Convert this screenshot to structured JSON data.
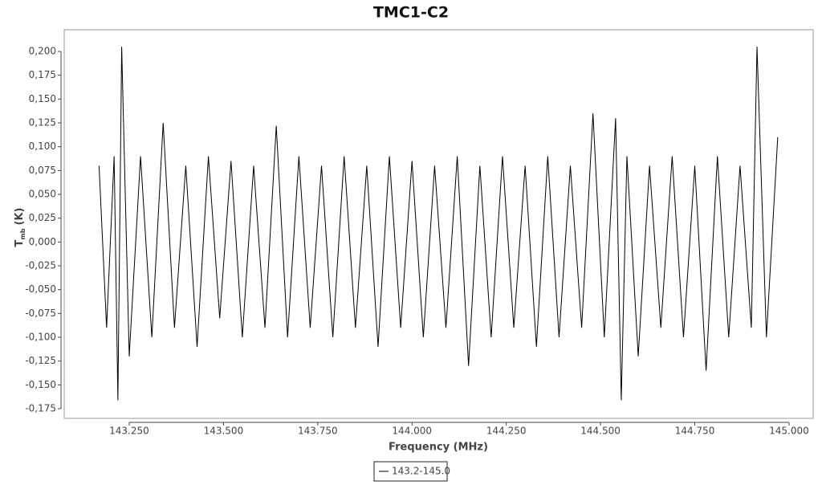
{
  "chart_data": {
    "type": "line",
    "title": "TMC1-C2",
    "x_label": "Frequency (MHz)",
    "y_label": {
      "main": "T",
      "sub": "mb",
      "unit": "(K)"
    },
    "xlim": [
      143.0776,
      145.064
    ],
    "ylim": [
      -0.1851,
      0.2228
    ],
    "xticks": [
      {
        "value": 143.25,
        "label": "143.250"
      },
      {
        "value": 143.5,
        "label": "143.500"
      },
      {
        "value": 143.75,
        "label": "143.750"
      },
      {
        "value": 144.0,
        "label": "144.000"
      },
      {
        "value": 144.25,
        "label": "144.250"
      },
      {
        "value": 144.5,
        "label": "144.500"
      },
      {
        "value": 144.75,
        "label": "144.750"
      },
      {
        "value": 145.0,
        "label": "145.000"
      }
    ],
    "yticks": [
      {
        "value": -0.175,
        "label": "-0,175"
      },
      {
        "value": -0.15,
        "label": "-0,150"
      },
      {
        "value": -0.125,
        "label": "-0,125"
      },
      {
        "value": -0.1,
        "label": "-0,100"
      },
      {
        "value": -0.075,
        "label": "-0,075"
      },
      {
        "value": -0.05,
        "label": "-0,050"
      },
      {
        "value": -0.025,
        "label": "-0,025"
      },
      {
        "value": 0,
        "label": "0,000"
      },
      {
        "value": 0.025,
        "label": "0,025"
      },
      {
        "value": 0.05,
        "label": "0,050"
      },
      {
        "value": 0.075,
        "label": "0,075"
      },
      {
        "value": 0.1,
        "label": "0,100"
      },
      {
        "value": 0.125,
        "label": "0,125"
      },
      {
        "value": 0.15,
        "label": "0,150"
      },
      {
        "value": 0.175,
        "label": "0,175"
      },
      {
        "value": 0.2,
        "label": "0,200"
      }
    ],
    "grid": false,
    "legend": "bottom",
    "x": [
      143.17,
      143.19,
      143.21,
      143.22,
      143.23,
      143.25,
      143.28,
      143.31,
      143.34,
      143.37,
      143.4,
      143.43,
      143.46,
      143.49,
      143.52,
      143.55,
      143.58,
      143.61,
      143.64,
      143.67,
      143.7,
      143.73,
      143.76,
      143.79,
      143.82,
      143.85,
      143.88,
      143.91,
      143.94,
      143.97,
      144.0,
      144.03,
      144.06,
      144.09,
      144.12,
      144.15,
      144.18,
      144.21,
      144.24,
      144.27,
      144.3,
      144.33,
      144.36,
      144.39,
      144.42,
      144.45,
      144.48,
      144.51,
      144.54,
      144.555,
      144.57,
      144.6,
      144.63,
      144.66,
      144.69,
      144.72,
      144.75,
      144.78,
      144.81,
      144.84,
      144.87,
      144.9,
      144.915,
      144.94,
      144.97
    ],
    "series": [
      {
        "name": "143.2-145.0",
        "color": "#000000",
        "values": [
          0.08,
          -0.09,
          0.09,
          -0.166,
          0.205,
          -0.12,
          0.09,
          -0.1,
          0.125,
          -0.09,
          0.08,
          -0.11,
          0.09,
          -0.08,
          0.085,
          -0.1,
          0.08,
          -0.09,
          0.122,
          -0.1,
          0.09,
          -0.09,
          0.08,
          -0.1,
          0.09,
          -0.09,
          0.08,
          -0.11,
          0.09,
          -0.09,
          0.085,
          -0.1,
          0.08,
          -0.09,
          0.09,
          -0.13,
          0.08,
          -0.1,
          0.09,
          -0.09,
          0.08,
          -0.11,
          0.09,
          -0.1,
          0.08,
          -0.09,
          0.135,
          -0.1,
          0.13,
          -0.166,
          0.09,
          -0.12,
          0.08,
          -0.09,
          0.09,
          -0.1,
          0.08,
          -0.135,
          0.09,
          -0.1,
          0.08,
          -0.09,
          0.205,
          -0.1,
          0.11
        ]
      }
    ]
  }
}
